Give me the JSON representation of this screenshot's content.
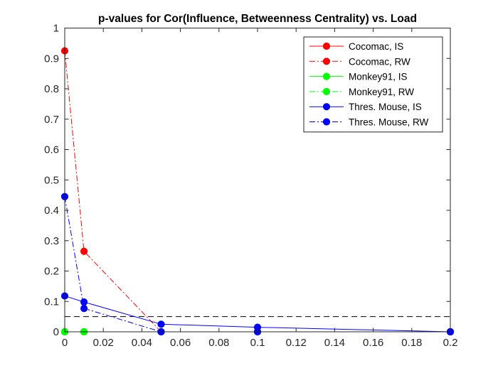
{
  "chart_data": {
    "type": "line",
    "title": "p-values for Cor(Influence, Betweenness Centrality) vs. Load",
    "xlabel": "",
    "ylabel": "",
    "xlim": [
      0,
      0.2
    ],
    "ylim": [
      0,
      1
    ],
    "xticks": [
      "0",
      "0.02",
      "0.04",
      "0.06",
      "0.08",
      "0.1",
      "0.12",
      "0.14",
      "0.16",
      "0.18",
      "0.2"
    ],
    "yticks": [
      "0",
      "0.1",
      "0.2",
      "0.3",
      "0.4",
      "0.5",
      "0.6",
      "0.7",
      "0.8",
      "0.9",
      "1"
    ],
    "grid": false,
    "legend_position": "top-right",
    "reference_line": {
      "y": 0.05,
      "style": "dashed",
      "color": "#000000"
    },
    "series": [
      {
        "name": "Cocomac, IS",
        "color": "#ff0000",
        "style": "solid",
        "x": [
          0,
          0.01,
          0.05,
          0.1,
          0.2
        ],
        "y": [
          0,
          0,
          0,
          0,
          0
        ]
      },
      {
        "name": "Cocomac, RW",
        "color": "#ff0000",
        "style": "dashdot",
        "x": [
          0,
          0.01,
          0.05,
          0.1,
          0.2
        ],
        "y": [
          0.925,
          0.265,
          0,
          0,
          0
        ]
      },
      {
        "name": "Monkey91, IS",
        "color": "#00ff00",
        "style": "solid",
        "x": [
          0,
          0.01,
          0.05,
          0.1,
          0.2
        ],
        "y": [
          0,
          0,
          0,
          0,
          0
        ]
      },
      {
        "name": "Monkey91, RW",
        "color": "#00ff00",
        "style": "dashdot",
        "x": [
          0,
          0.01,
          0.05,
          0.1,
          0.2
        ],
        "y": [
          0,
          0,
          0,
          0,
          0
        ]
      },
      {
        "name": "Thres. Mouse, IS",
        "color": "#0000ff",
        "style": "solid",
        "x": [
          0,
          0.01,
          0.05,
          0.1,
          0.2
        ],
        "y": [
          0.118,
          0.098,
          0.025,
          0.015,
          0
        ]
      },
      {
        "name": "Thres. Mouse, RW",
        "color": "#0000ff",
        "style": "dashdot",
        "x": [
          0,
          0.01,
          0.05,
          0.1,
          0.2
        ],
        "y": [
          0.445,
          0.077,
          0,
          0,
          0
        ]
      }
    ]
  }
}
